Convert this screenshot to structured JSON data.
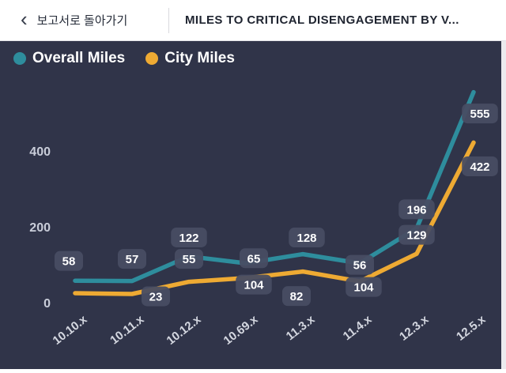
{
  "topbar": {
    "back_chevron": "‹",
    "back_label": "보고서로 돌아가기",
    "title": "MILES TO CRITICAL DISENGAGEMENT BY V..."
  },
  "legend": [
    {
      "label": "Overall Miles",
      "color": "#2e8d9d"
    },
    {
      "label": "City Miles",
      "color": "#eeaa33"
    }
  ],
  "colors": {
    "background": "#303449",
    "badge_bg": "#484d63",
    "teal": "#2e8d9d",
    "orange": "#eeaa33",
    "axis_text": "#d4d7e0",
    "topbar_bg": "#ffffff"
  },
  "chart_data": {
    "type": "line",
    "title": "Miles to Critical Disengagement by Version",
    "categories": [
      "10.10.x",
      "10.11.x",
      "10.12.x",
      "10.69.x",
      "11.3.x",
      "11.4.x",
      "12.3.x",
      "12.5.x"
    ],
    "series": [
      {
        "name": "Overall Miles",
        "color": "#2e8d9d",
        "values": [
          58,
          57,
          122,
          104,
          128,
          104,
          196,
          555
        ],
        "labels": [
          "58",
          "57",
          "122",
          "104",
          "128",
          "104",
          "196",
          "555"
        ]
      },
      {
        "name": "City Miles",
        "color": "#eeaa33",
        "values": [
          25,
          23,
          55,
          65,
          82,
          56,
          129,
          422
        ],
        "labels": [
          "",
          "23",
          "55",
          "65",
          "82",
          "56",
          "129",
          "422"
        ]
      }
    ],
    "y_ticks": [
      0,
      200,
      400
    ],
    "ylim": [
      0,
      590
    ],
    "grid": false,
    "legend_position": "top-left"
  }
}
